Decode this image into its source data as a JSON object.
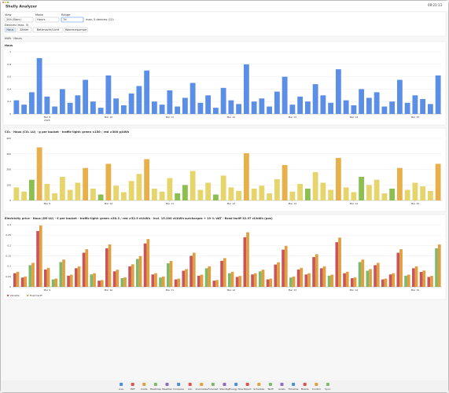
{
  "header": {
    "title": "Shelly Analyzer",
    "clock": "09:21:13"
  },
  "controls": {
    "view_label": "View",
    "view_value": "24h (Bars)",
    "mode_label": "Mode",
    "mode_value": "Hours",
    "range_label": "Range",
    "range_value": "7d",
    "range_note": "max. 5 devices (12)",
    "devices_label": "Devices (max. 5)",
    "devices": [
      "Haus",
      "Zähler",
      "Bettmacht/Licht",
      "Waermepumpe"
    ]
  },
  "unit_note": "kWh · Hours",
  "chart_data": [
    {
      "type": "bar",
      "title": "Haus",
      "color": "#5b8ee6",
      "year": "2025",
      "values": [
        0.22,
        0.15,
        0.35,
        0.9,
        0.28,
        0.12,
        0.4,
        0.18,
        0.3,
        0.55,
        0.2,
        0.1,
        0.62,
        0.25,
        0.14,
        0.33,
        0.45,
        0.7,
        0.2,
        0.15,
        0.38,
        0.12,
        0.26,
        0.5,
        0.18,
        0.3,
        0.1,
        0.42,
        0.22,
        0.16,
        0.8,
        0.2,
        0.25,
        0.12,
        0.36,
        0.6,
        0.15,
        0.28,
        0.2,
        0.48,
        0.3,
        0.18,
        0.72,
        0.22,
        0.14,
        0.4,
        0.26,
        0.35,
        0.12,
        0.2,
        0.55,
        0.18,
        0.3,
        0.24,
        0.16,
        0.62
      ],
      "ylim": [
        0,
        1
      ],
      "yticks": [
        0,
        0.2,
        0.4,
        0.6,
        0.8,
        1
      ],
      "xticks": [
        {
          "value": 4,
          "label": "Mar 9"
        },
        {
          "value": 12,
          "label": "Mar 10"
        },
        {
          "value": 20,
          "label": "Mar 11"
        },
        {
          "value": 28,
          "label": "Mar 12"
        },
        {
          "value": 36,
          "label": "Mar 13"
        },
        {
          "value": 44,
          "label": "Mar 14"
        },
        {
          "value": 52,
          "label": "Mar 15"
        }
      ],
      "grid": true
    },
    {
      "type": "bar",
      "title": "CO₂ · Haus (CO₂ LU) · g per bucket · traffic-light: green ≤150 / red ≥300 g/kWh",
      "palette": {
        "g": "#8cbf4f",
        "y": "#e6d46c",
        "o": "#e8b04b",
        "r": "#c9555a"
      },
      "bar_colors": "yygoyyyyyoygoyyyyoyyyggyyygyyyoyyyyoyygyyyoyygyyygoyyyyo",
      "values": [
        84,
        57,
        133,
        342,
        106,
        46,
        152,
        68,
        114,
        209,
        76,
        38,
        236,
        95,
        53,
        125,
        171,
        266,
        76,
        57,
        144,
        46,
        99,
        190,
        68,
        114,
        38,
        160,
        84,
        61,
        304,
        76,
        95,
        46,
        137,
        228,
        57,
        106,
        76,
        182,
        114,
        68,
        274,
        84,
        53,
        152,
        99,
        133,
        46,
        76,
        209,
        68,
        114,
        91,
        61,
        236
      ],
      "ylim": [
        0,
        400
      ],
      "yticks": [
        0,
        100,
        200,
        300,
        400
      ],
      "xticks": [
        {
          "value": 4,
          "label": "Mar 9"
        },
        {
          "value": 12,
          "label": "Mar 10"
        },
        {
          "value": 20,
          "label": "Mar 11"
        },
        {
          "value": 28,
          "label": "Mar 12"
        },
        {
          "value": 36,
          "label": "Mar 13"
        },
        {
          "value": 44,
          "label": "Mar 14"
        },
        {
          "value": 52,
          "label": "Mar 15"
        }
      ],
      "grid": true
    },
    {
      "type": "grouped-bar",
      "title": "Electricity price · Haus (DE-LU) · € per bucket · traffic-light: green ≤30.3 / red ≥32.9 ct/kWh · incl. 15.200 ct/kWh surcharges + 19 % VAT · fixed tariff 32.97 ct/kWh (pos)",
      "palette": {
        "g": "#7fb86a",
        "r": "#c9555a"
      },
      "bar_colors": "rrgrrggrrrgrrrgrgrrggrrrrgrrgrrrgrrrgrrrrgrrrggrrrrgrrrg",
      "series": [
        {
          "name": "Variable",
          "color": "#d9534f",
          "values": [
            0.066,
            0.045,
            0.105,
            0.27,
            0.084,
            0.036,
            0.12,
            0.054,
            0.09,
            0.165,
            0.06,
            0.03,
            0.186,
            0.075,
            0.042,
            0.099,
            0.135,
            0.21,
            0.06,
            0.045,
            0.114,
            0.036,
            0.078,
            0.15,
            0.054,
            0.09,
            0.03,
            0.126,
            0.066,
            0.048,
            0.24,
            0.06,
            0.075,
            0.036,
            0.108,
            0.18,
            0.045,
            0.084,
            0.06,
            0.144,
            0.09,
            0.054,
            0.216,
            0.066,
            0.042,
            0.12,
            0.078,
            0.105,
            0.036,
            0.06,
            0.165,
            0.054,
            0.09,
            0.072,
            0.048,
            0.186
          ]
        },
        {
          "name": "Fixed tariff",
          "color": "#e0a040",
          "values": [
            0.073,
            0.05,
            0.116,
            0.297,
            0.092,
            0.04,
            0.132,
            0.059,
            0.099,
            0.182,
            0.066,
            0.033,
            0.205,
            0.083,
            0.046,
            0.109,
            0.149,
            0.231,
            0.066,
            0.05,
            0.125,
            0.04,
            0.086,
            0.165,
            0.059,
            0.099,
            0.033,
            0.139,
            0.073,
            0.053,
            0.264,
            0.066,
            0.083,
            0.04,
            0.119,
            0.198,
            0.05,
            0.092,
            0.066,
            0.158,
            0.099,
            0.059,
            0.238,
            0.073,
            0.046,
            0.132,
            0.086,
            0.116,
            0.04,
            0.066,
            0.182,
            0.059,
            0.099,
            0.079,
            0.053,
            0.205
          ]
        }
      ],
      "ylim": [
        0,
        0.3
      ],
      "yticks": [
        0,
        0.05,
        0.1,
        0.15,
        0.2,
        0.25,
        0.3
      ],
      "xticks": [
        {
          "value": 4,
          "label": "Mar 9"
        },
        {
          "value": 12,
          "label": "Mar 10"
        },
        {
          "value": 20,
          "label": "Mar 11"
        },
        {
          "value": 28,
          "label": "Mar 12"
        },
        {
          "value": 36,
          "label": "Mar 13"
        },
        {
          "value": 44,
          "label": "Mar 14"
        },
        {
          "value": 52,
          "label": "Mar 15"
        }
      ],
      "grid": true
    }
  ],
  "nav": [
    "Live",
    "PDF",
    "Costs",
    "Heatmap",
    "Weather",
    "Compare",
    "CO₂",
    "Anomalies",
    "Forecast",
    "Standby",
    "Energy flow",
    "Export",
    "Schedule",
    "Tariff",
    "Goals",
    "Timeline",
    "Mobile",
    "Control",
    "Sync"
  ]
}
